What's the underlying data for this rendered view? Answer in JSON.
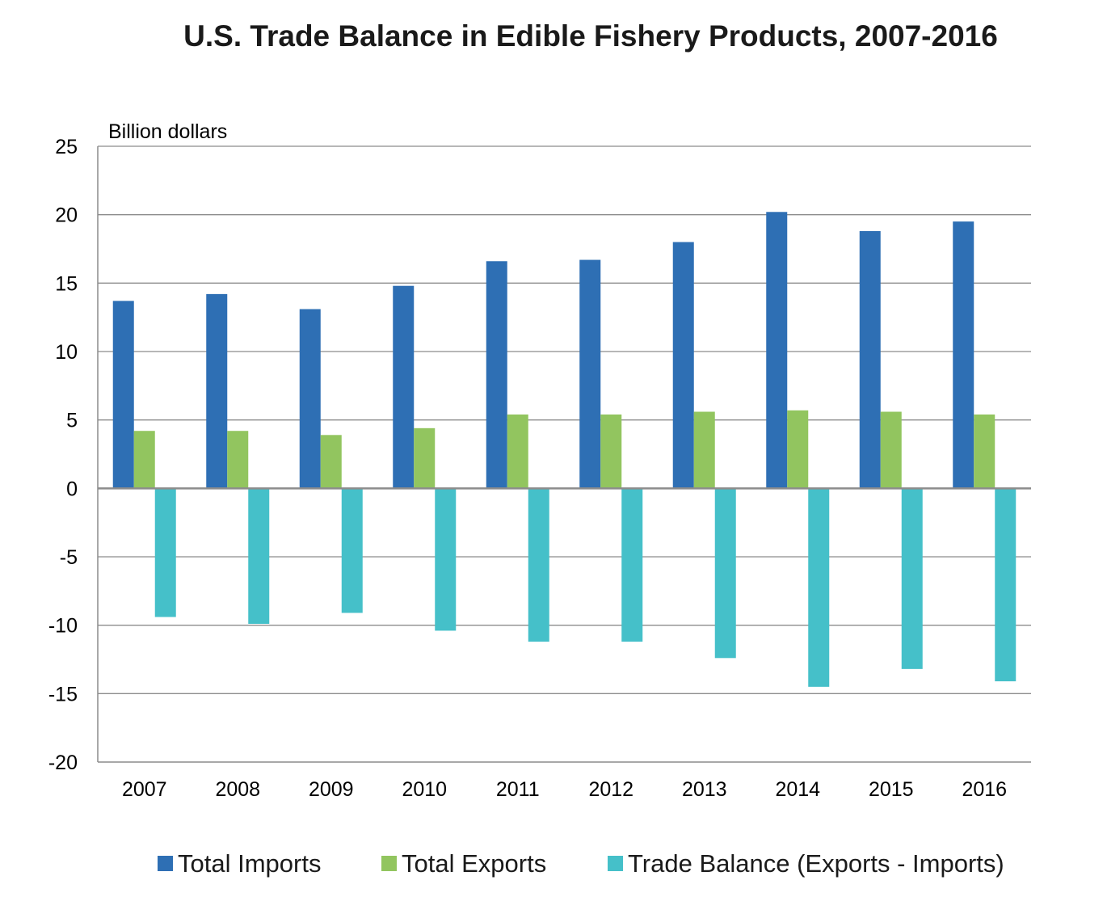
{
  "chart_data": {
    "type": "bar",
    "title": "U.S. Trade Balance in Edible Fishery Products, 2007-2016",
    "unit_label": "Billion dollars",
    "xlabel": "",
    "ylabel": "",
    "ylim": [
      -20,
      25
    ],
    "yticks": [
      25,
      20,
      15,
      10,
      5,
      0,
      -5,
      -10,
      -15,
      -20
    ],
    "ytick_labels": [
      "25",
      "20",
      "15",
      "10",
      "5",
      "0",
      "-5",
      "-10",
      "-15",
      "-20"
    ],
    "categories": [
      "2007",
      "2008",
      "2009",
      "2010",
      "2011",
      "2012",
      "2013",
      "2014",
      "2015",
      "2016"
    ],
    "series": [
      {
        "name": "Total Imports",
        "color": "#2e6fb4",
        "values": [
          13.7,
          14.2,
          13.1,
          14.8,
          16.6,
          16.7,
          18.0,
          20.2,
          18.8,
          19.5
        ]
      },
      {
        "name": "Total Exports",
        "color": "#92c55f",
        "values": [
          4.2,
          4.2,
          3.9,
          4.4,
          5.4,
          5.4,
          5.6,
          5.7,
          5.6,
          5.4
        ]
      },
      {
        "name": "Trade Balance (Exports - Imports)",
        "color": "#45c0c9",
        "values": [
          -9.4,
          -9.9,
          -9.1,
          -10.4,
          -11.2,
          -11.2,
          -12.4,
          -14.5,
          -13.2,
          -14.1
        ]
      }
    ],
    "grid": true,
    "legend_position": "bottom"
  }
}
